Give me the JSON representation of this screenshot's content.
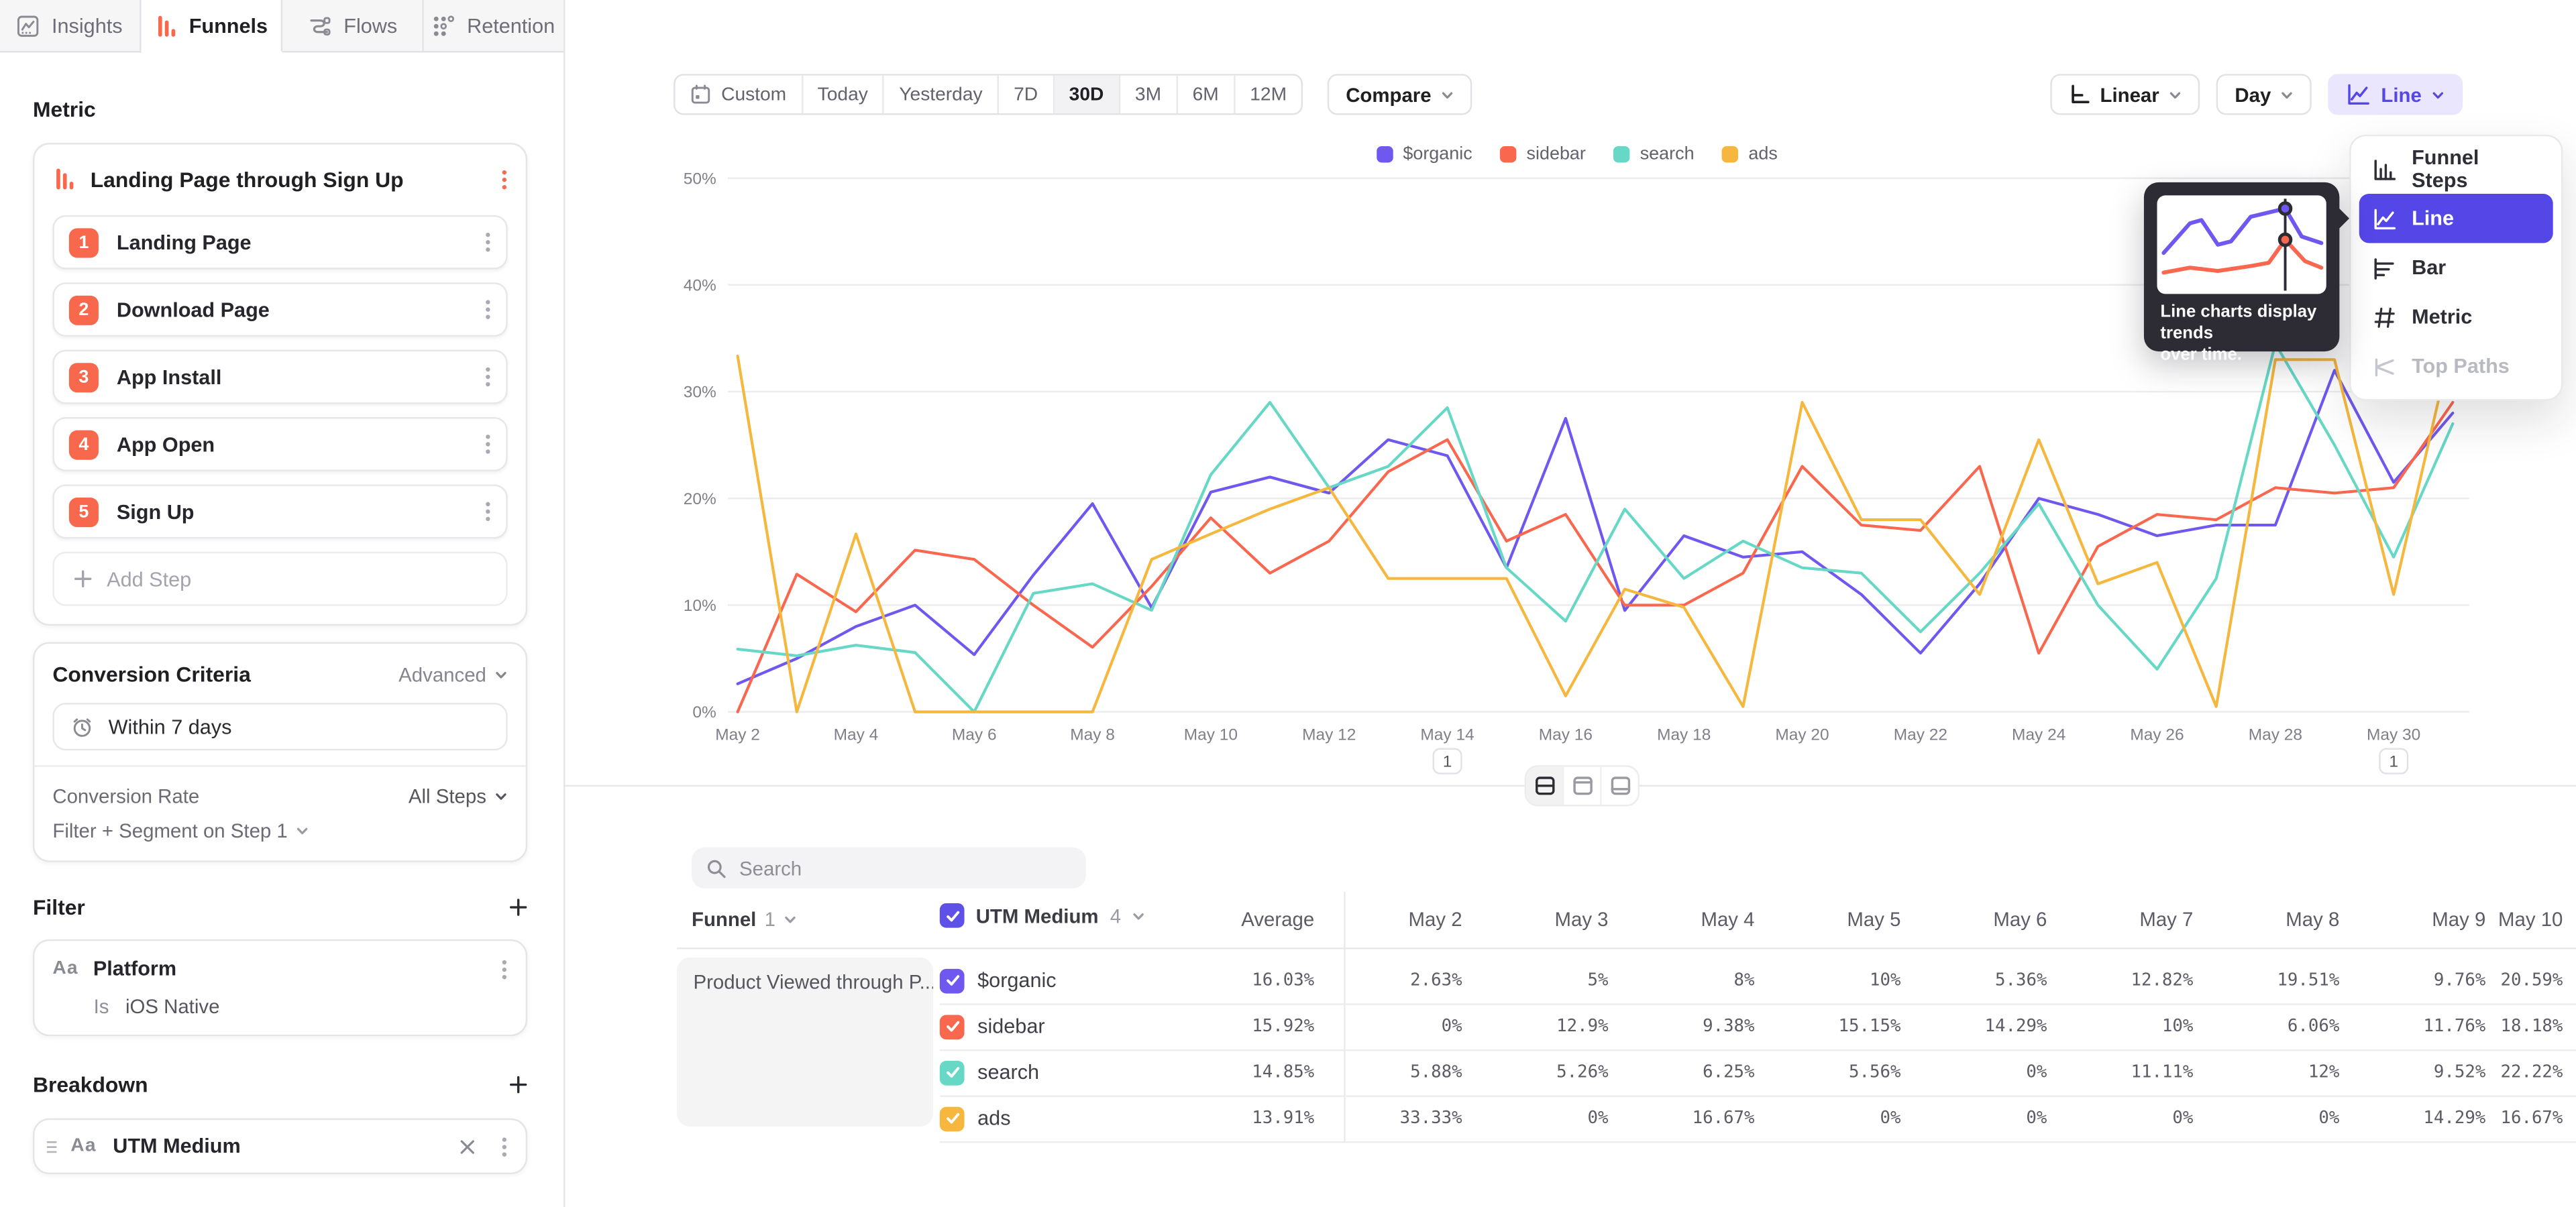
{
  "tabs": [
    {
      "label": "Insights",
      "active": false
    },
    {
      "label": "Funnels",
      "active": true
    },
    {
      "label": "Flows",
      "active": false
    },
    {
      "label": "Retention",
      "active": false
    }
  ],
  "sidebar": {
    "metric_label": "Metric",
    "funnel": {
      "title": "Landing Page through Sign Up",
      "steps": [
        {
          "num": "1",
          "label": "Landing Page"
        },
        {
          "num": "2",
          "label": "Download Page"
        },
        {
          "num": "3",
          "label": "App Install"
        },
        {
          "num": "4",
          "label": "App Open"
        },
        {
          "num": "5",
          "label": "Sign Up"
        }
      ],
      "add_step": "Add Step"
    },
    "conversion": {
      "title": "Conversion Criteria",
      "advanced": "Advanced",
      "window": "Within 7 days",
      "rate_label": "Conversion Rate",
      "rate_value": "All Steps",
      "filter_segment": "Filter + Segment on Step 1"
    },
    "filter": {
      "title": "Filter",
      "type_icon": "Aa",
      "property": "Platform",
      "operator": "Is",
      "value": "iOS Native"
    },
    "breakdown": {
      "title": "Breakdown",
      "type_icon": "Aa",
      "property": "UTM Medium"
    }
  },
  "toolbar": {
    "date_ranges": [
      "Custom",
      "Today",
      "Yesterday",
      "7D",
      "30D",
      "3M",
      "6M",
      "12M"
    ],
    "active_range": "30D",
    "compare": "Compare",
    "scale": "Linear",
    "interval": "Day",
    "chart_type": "Line"
  },
  "chart_menu": {
    "items": [
      {
        "label": "Funnel Steps",
        "state": "normal"
      },
      {
        "label": "Line",
        "state": "selected"
      },
      {
        "label": "Bar",
        "state": "normal"
      },
      {
        "label": "Metric",
        "state": "normal"
      },
      {
        "label": "Top Paths",
        "state": "disabled"
      }
    ]
  },
  "tooltip": {
    "line1": "Line charts display trends",
    "line2": "over time."
  },
  "chart_data": {
    "type": "line",
    "x": [
      "May 2",
      "May 3",
      "May 4",
      "May 5",
      "May 6",
      "May 7",
      "May 8",
      "May 9",
      "May 10",
      "May 11",
      "May 12",
      "May 13",
      "May 14",
      "May 15",
      "May 16",
      "May 17",
      "May 18",
      "May 19",
      "May 20",
      "May 21",
      "May 22",
      "May 23",
      "May 24",
      "May 25",
      "May 26",
      "May 27",
      "May 28",
      "May 29",
      "May 30",
      "May 31"
    ],
    "x_ticks_shown_every": 2,
    "ylim": [
      0,
      50
    ],
    "y_ticks": [
      "0%",
      "10%",
      "20%",
      "30%",
      "40%",
      "50%"
    ],
    "grid": true,
    "legend_position": "top",
    "series": [
      {
        "name": "$organic",
        "color": "#6f58f0",
        "values": [
          2.63,
          5,
          8,
          10,
          5.36,
          12.82,
          19.51,
          9.76,
          20.59,
          22,
          20.5,
          25.5,
          24,
          13.5,
          27.5,
          9.5,
          16.5,
          14.5,
          15,
          11,
          5.5,
          12,
          20,
          18.5,
          16.5,
          17.5,
          17.5,
          32,
          21.5,
          28
        ]
      },
      {
        "name": "sidebar",
        "color": "#f9674f",
        "values": [
          0,
          12.9,
          9.38,
          15.15,
          14.29,
          10,
          6.06,
          11.76,
          18.18,
          13,
          16,
          22.5,
          25.5,
          16,
          18.5,
          10,
          10,
          13,
          23,
          17.5,
          17,
          23,
          5.5,
          15.5,
          18.5,
          18,
          21,
          20.5,
          21,
          29
        ]
      },
      {
        "name": "search",
        "color": "#67d8c6",
        "values": [
          5.88,
          5.26,
          6.25,
          5.56,
          0,
          11.11,
          12,
          9.52,
          22.22,
          29,
          21,
          23,
          28.5,
          13.5,
          8.5,
          19,
          12.5,
          16,
          13.5,
          13,
          7.5,
          13,
          19.5,
          10,
          4,
          12.5,
          34.5,
          25,
          14.5,
          27
        ]
      },
      {
        "name": "ads",
        "color": "#f5b73d",
        "values": [
          33.33,
          0,
          16.67,
          0,
          0,
          0,
          0,
          14.29,
          16.67,
          19,
          21,
          12.5,
          12.5,
          12.5,
          1.5,
          11.5,
          9.8,
          0.5,
          29,
          18,
          18,
          11,
          25.5,
          12,
          14,
          0.5,
          33,
          33,
          11,
          35
        ]
      }
    ],
    "annotations": [
      {
        "x_index": 12,
        "label": "1"
      },
      {
        "x_index": 28,
        "label": "1"
      }
    ]
  },
  "table": {
    "search_placeholder": "Search",
    "funnel_label": "Funnel",
    "funnel_count": "1",
    "breakdown_label": "UTM Medium",
    "breakdown_count": "4",
    "funnel_name": "Product Viewed through P...",
    "columns": [
      "Average",
      "May 2",
      "May 3",
      "May 4",
      "May 5",
      "May 6",
      "May 7",
      "May 8",
      "May 9",
      "May 10"
    ],
    "rows": [
      {
        "label": "$organic",
        "color": "#6f58f0",
        "values": [
          "16.03%",
          "2.63%",
          "5%",
          "8%",
          "10%",
          "5.36%",
          "12.82%",
          "19.51%",
          "9.76%",
          "20.59%"
        ]
      },
      {
        "label": "sidebar",
        "color": "#f9674f",
        "values": [
          "15.92%",
          "0%",
          "12.9%",
          "9.38%",
          "15.15%",
          "14.29%",
          "10%",
          "6.06%",
          "11.76%",
          "18.18%"
        ]
      },
      {
        "label": "search",
        "color": "#67d8c6",
        "values": [
          "14.85%",
          "5.88%",
          "5.26%",
          "6.25%",
          "5.56%",
          "0%",
          "11.11%",
          "12%",
          "9.52%",
          "22.22%"
        ]
      },
      {
        "label": "ads",
        "color": "#f5b73d",
        "values": [
          "13.91%",
          "33.33%",
          "0%",
          "16.67%",
          "0%",
          "0%",
          "0%",
          "0%",
          "14.29%",
          "16.67%"
        ]
      }
    ]
  }
}
